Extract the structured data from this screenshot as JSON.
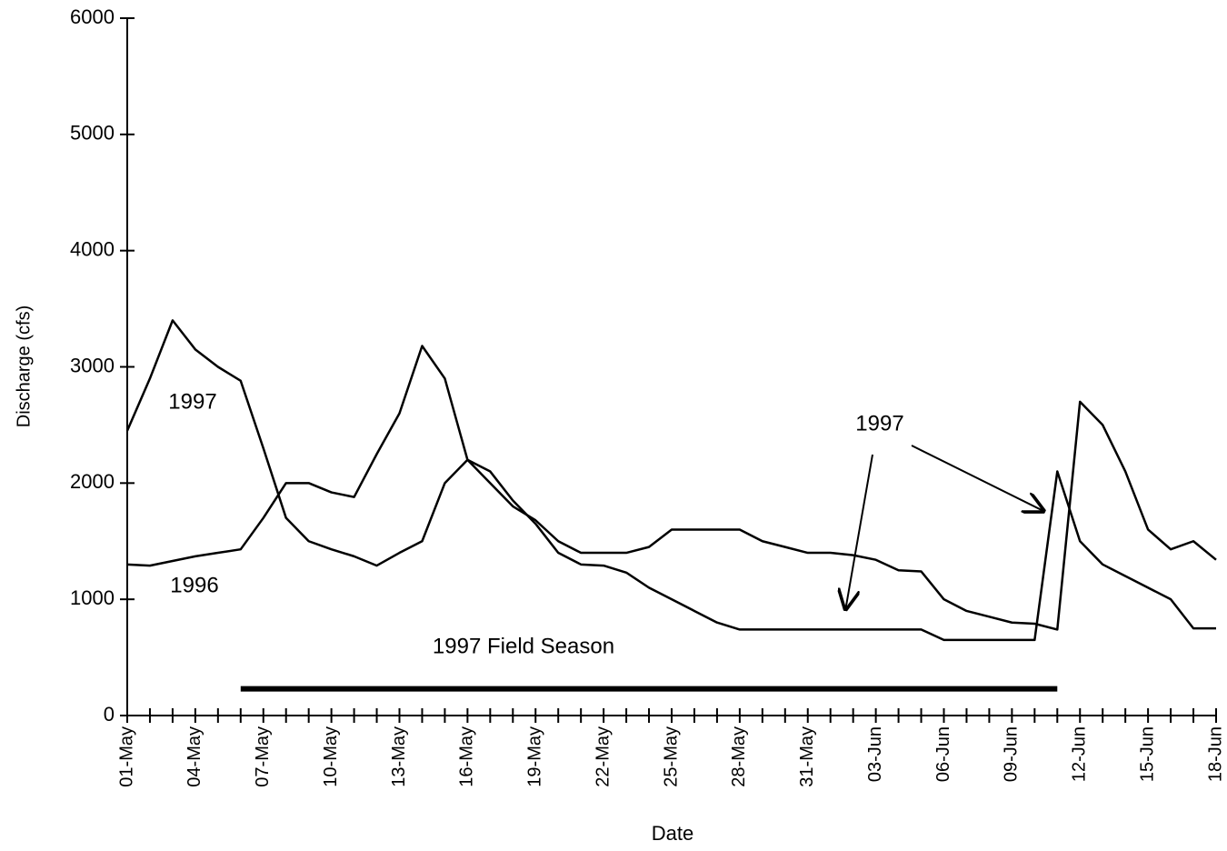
{
  "chart_data": {
    "type": "line",
    "x_label": "Date",
    "y_label": "Discharge (cfs)",
    "categories": [
      "01-May",
      null,
      null,
      "04-May",
      null,
      null,
      "07-May",
      null,
      null,
      "10-May",
      null,
      null,
      "13-May",
      null,
      null,
      "16-May",
      null,
      null,
      "19-May",
      null,
      null,
      "22-May",
      null,
      null,
      "25-May",
      null,
      null,
      "28-May",
      null,
      null,
      "31-May",
      null,
      null,
      "03-Jun",
      null,
      null,
      "06-Jun",
      null,
      null,
      "09-Jun",
      null,
      null,
      "12-Jun",
      null,
      null,
      "15-Jun",
      null,
      null,
      "18-Jun"
    ],
    "series": [
      {
        "color": "#000000",
        "values": [
          2450,
          2900,
          3400,
          3150,
          3000,
          2880,
          2300,
          1700,
          1500,
          1430,
          1370,
          1290,
          1400,
          1500,
          2000,
          2200,
          2100,
          1850,
          1650,
          1400,
          1300,
          1290,
          1230,
          1100,
          1000,
          900,
          800,
          740,
          740,
          740,
          740,
          740,
          740,
          740,
          740,
          740,
          650,
          650,
          650,
          650,
          650,
          2100,
          1500,
          1300,
          1200,
          1100,
          1000,
          750,
          750
        ]
      },
      {
        "color": "#000000",
        "values": [
          1300,
          1290,
          1330,
          1370,
          1400,
          1430,
          1700,
          2000,
          2000,
          1920,
          1880,
          2250,
          2600,
          3180,
          2900,
          2200,
          2000,
          1800,
          1680,
          1500,
          1400,
          1400,
          1400,
          1450,
          1600,
          1600,
          1600,
          1600,
          1500,
          1450,
          1400,
          1400,
          1380,
          1340,
          1250,
          1240,
          1000,
          900,
          850,
          800,
          790,
          740,
          2700,
          2500,
          2100,
          1600,
          1430,
          1500,
          1340
        ]
      }
    ],
    "annotations": [
      "1997",
      "1996",
      "1997"
    ],
    "span": {
      "text": "1997 Field Season",
      "from": 5,
      "to": 41,
      "y": 230
    },
    "ylim": [
      0,
      6000
    ],
    "yticks": [
      0,
      1000,
      2000,
      3000,
      4000,
      5000,
      6000
    ],
    "grid": false
  }
}
